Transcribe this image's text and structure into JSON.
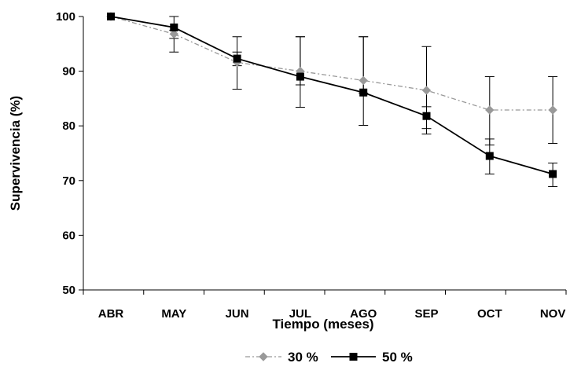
{
  "chart_data": {
    "type": "line",
    "xlabel": "Tiempo (meses)",
    "ylabel": "Supervivencia (%)",
    "ylim": [
      50,
      100
    ],
    "yticks": [
      50,
      60,
      70,
      80,
      90,
      100
    ],
    "grid": false,
    "legend_position": "bottom",
    "categories": [
      "ABR",
      "MAY",
      "JUN",
      "JUL",
      "AGO",
      "SEP",
      "OCT",
      "NOV"
    ],
    "series": [
      {
        "name": "30 %",
        "color": "#999999",
        "marker": "diamond",
        "line_style": "dash-dot",
        "values": [
          100,
          96.8,
          91.6,
          90.0,
          88.3,
          86.5,
          82.9,
          82.9
        ],
        "error_low": [
          100,
          93.5,
          91.0,
          87.5,
          86.0,
          79.5,
          76.5,
          76.8
        ],
        "error_high": [
          100,
          97.5,
          93.5,
          96.3,
          96.3,
          94.5,
          89.0,
          89.0
        ]
      },
      {
        "name": "50 %",
        "color": "#000000",
        "marker": "square",
        "line_style": "solid",
        "values": [
          100,
          98.0,
          92.3,
          89.0,
          86.1,
          81.8,
          74.5,
          71.2
        ],
        "error_low": [
          100,
          96.0,
          86.7,
          83.4,
          80.1,
          78.5,
          71.2,
          68.9
        ],
        "error_high": [
          100,
          100,
          96.3,
          96.3,
          96.3,
          83.5,
          77.6,
          73.2
        ]
      }
    ]
  }
}
